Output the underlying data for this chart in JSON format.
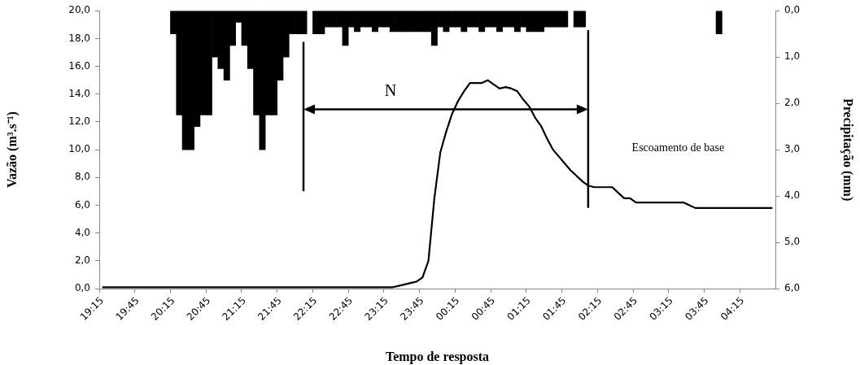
{
  "chart_data": {
    "type": "line",
    "xlabel": "Tempo de resposta",
    "ylabel": "Vazão (m³.s⁻¹)",
    "y2label": "Precipitação (mm)",
    "categories": [
      "19:15",
      null,
      null,
      null,
      null,
      null,
      "19:45",
      null,
      null,
      null,
      null,
      null,
      "20:15",
      null,
      null,
      null,
      null,
      null,
      "20:45",
      null,
      null,
      null,
      null,
      null,
      "21:15",
      null,
      null,
      null,
      null,
      null,
      "21:45",
      null,
      null,
      null,
      null,
      null,
      "22:15",
      null,
      null,
      null,
      null,
      null,
      "22:45",
      null,
      null,
      null,
      null,
      null,
      "23:15",
      null,
      null,
      null,
      null,
      null,
      "23:45",
      null,
      null,
      null,
      null,
      null,
      "00:15",
      null,
      null,
      null,
      null,
      null,
      "00:45",
      null,
      null,
      null,
      null,
      null,
      "01:15",
      null,
      null,
      null,
      null,
      null,
      "01:45",
      null,
      null,
      null,
      null,
      null,
      "02:15",
      null,
      null,
      null,
      null,
      null,
      "02:45",
      null,
      null,
      null,
      null,
      null,
      "03:15",
      null,
      null,
      null,
      null,
      null,
      "03:45",
      null,
      null,
      null,
      null,
      null,
      "04:15",
      null,
      null,
      null,
      null,
      null
    ],
    "series": [
      {
        "color": "#000000",
        "values": [
          0.1,
          0.1,
          0.1,
          0.1,
          0.1,
          0.1,
          0.1,
          0.1,
          0.1,
          0.1,
          0.1,
          0.1,
          0.1,
          0.1,
          0.1,
          0.1,
          0.1,
          0.1,
          0.1,
          0.1,
          0.1,
          0.1,
          0.1,
          0.1,
          0.1,
          0.1,
          0.1,
          0.1,
          0.1,
          0.1,
          0.1,
          0.1,
          0.1,
          0.1,
          0.1,
          0.1,
          0.1,
          0.1,
          0.1,
          0.1,
          0.1,
          0.1,
          0.1,
          0.1,
          0.1,
          0.1,
          0.1,
          0.1,
          0.1,
          0.1,
          0.2,
          0.3,
          0.4,
          0.5,
          0.8,
          2.0,
          6.5,
          9.8,
          11.3,
          12.6,
          13.5,
          14.2,
          14.8,
          14.8,
          14.8,
          15.0,
          14.7,
          14.4,
          14.5,
          14.4,
          14.2,
          13.6,
          13.1,
          12.3,
          11.7,
          10.8,
          10.0,
          9.5,
          9.0,
          8.5,
          8.1,
          7.7,
          7.4,
          7.3,
          7.3,
          7.3,
          7.3,
          6.9,
          6.5,
          6.5,
          6.2,
          6.2,
          6.2,
          6.2,
          6.2,
          6.2,
          6.2,
          6.2,
          6.2,
          6.0,
          5.8,
          5.8,
          5.8,
          5.8,
          5.8,
          5.8,
          5.8,
          5.8,
          5.8,
          5.8,
          5.8,
          5.8,
          5.8,
          5.8
        ]
      },
      {
        "type": "bar",
        "axis": "y2",
        "color": "#000000",
        "values": [
          null,
          null,
          null,
          null,
          null,
          null,
          null,
          null,
          null,
          null,
          null,
          null,
          0.5,
          2.25,
          3.0,
          3.0,
          2.5,
          2.25,
          2.25,
          1.0,
          1.25,
          1.5,
          0.75,
          0.25,
          0.75,
          1.25,
          2.25,
          3.0,
          2.25,
          2.25,
          1.5,
          1.0,
          0.5,
          0.5,
          0.5,
          null,
          0.5,
          0.5,
          0.35,
          0.35,
          0.35,
          0.75,
          0.35,
          0.45,
          0.35,
          0.35,
          0.45,
          0.35,
          0.35,
          0.45,
          0.45,
          0.45,
          0.45,
          0.45,
          0.45,
          0.45,
          0.75,
          0.35,
          0.45,
          0.35,
          0.35,
          0.45,
          0.35,
          0.35,
          0.45,
          0.35,
          0.35,
          0.45,
          0.35,
          0.35,
          0.45,
          0.35,
          0.45,
          0.45,
          0.45,
          0.35,
          0.35,
          0.35,
          0.35,
          null,
          0.35,
          0.35,
          null,
          null,
          null,
          null,
          null,
          null,
          null,
          null,
          null,
          null,
          null,
          null,
          null,
          null,
          null,
          null,
          null,
          null,
          null,
          null,
          null,
          null,
          0.5,
          null,
          null,
          null,
          null,
          null,
          null,
          null,
          null,
          null
        ]
      }
    ],
    "ylim": [
      0,
      20
    ],
    "yticks": [
      {
        "value": 0,
        "label": "0,0"
      },
      {
        "value": 2,
        "label": "2,0"
      },
      {
        "value": 4,
        "label": "4,0"
      },
      {
        "value": 6,
        "label": "6,0"
      },
      {
        "value": 8,
        "label": "8,0"
      },
      {
        "value": 10,
        "label": "10,0"
      },
      {
        "value": 12,
        "label": "12,0"
      },
      {
        "value": 14,
        "label": "14,0"
      },
      {
        "value": 16,
        "label": "16,0"
      },
      {
        "value": 18,
        "label": "18,0"
      },
      {
        "value": 20,
        "label": "20,0"
      }
    ],
    "y2lim": [
      6,
      0
    ],
    "y2ticks": [
      {
        "value": 0,
        "label": "0,0"
      },
      {
        "value": 1,
        "label": "1,0"
      },
      {
        "value": 2,
        "label": "2,0"
      },
      {
        "value": 3,
        "label": "3,0"
      },
      {
        "value": 4,
        "label": "4,0"
      },
      {
        "value": 5,
        "label": "5,0"
      },
      {
        "value": 6,
        "label": "6,0"
      }
    ],
    "annotations": [
      "N",
      "Escoamento de base"
    ],
    "grid": false,
    "legend": false,
    "marker": "none",
    "line_style": "solid"
  }
}
